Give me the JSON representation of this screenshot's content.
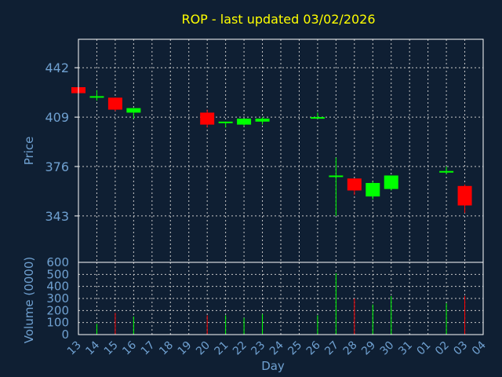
{
  "colors": {
    "bg": "#0f1f33",
    "up": "#00ff00",
    "down": "#ff0000",
    "axis": "#ffffff",
    "grid": "#c8c8c8",
    "title": "#ffff00",
    "label": "#6fa0d0"
  },
  "chart_data": {
    "type": "candlestick",
    "title": "ROP - last updated 03/02/2026",
    "xlabel": "Day",
    "x_ticks": [
      "13",
      "14",
      "15",
      "16",
      "17",
      "18",
      "19",
      "20",
      "21",
      "22",
      "23",
      "24",
      "25",
      "26",
      "27",
      "28",
      "29",
      "30",
      "31",
      "01",
      "02",
      "03",
      "04"
    ],
    "price_panel": {
      "ylabel": "Price",
      "ylim": [
        312,
        461
      ],
      "y_ticks": [
        343,
        376,
        409,
        442
      ],
      "grid": true
    },
    "volume_panel": {
      "ylabel": "Volume (0000)",
      "ylim": [
        0,
        600
      ],
      "y_ticks": [
        0,
        100,
        200,
        300,
        400,
        500,
        600
      ],
      "grid": true
    },
    "candles": [
      {
        "day": "13",
        "open": 429,
        "high": 429,
        "low": 425,
        "close": 425,
        "volume": 0
      },
      {
        "day": "14",
        "open": 423,
        "high": 427,
        "low": 420,
        "close": 423,
        "volume": 90
      },
      {
        "day": "15",
        "open": 422,
        "high": 422,
        "low": 413,
        "close": 414,
        "volume": 180
      },
      {
        "day": "16",
        "open": 412,
        "high": 415,
        "low": 408,
        "close": 415,
        "volume": 150
      },
      {
        "day": "20",
        "open": 412,
        "high": 414,
        "low": 402,
        "close": 404,
        "volume": 160
      },
      {
        "day": "21",
        "open": 405,
        "high": 406,
        "low": 402,
        "close": 406,
        "volume": 160
      },
      {
        "day": "22",
        "open": 404,
        "high": 408,
        "low": 403,
        "close": 408,
        "volume": 140
      },
      {
        "day": "23",
        "open": 406,
        "high": 409,
        "low": 404,
        "close": 408,
        "volume": 170
      },
      {
        "day": "26",
        "open": 409,
        "high": 412,
        "low": 408,
        "close": 409,
        "volume": 160
      },
      {
        "day": "27",
        "open": 369,
        "high": 382,
        "low": 343,
        "close": 370,
        "volume": 510
      },
      {
        "day": "28",
        "open": 368,
        "high": 368,
        "low": 357,
        "close": 360,
        "volume": 300
      },
      {
        "day": "29",
        "open": 356,
        "high": 366,
        "low": 354,
        "close": 365,
        "volume": 250
      },
      {
        "day": "30",
        "open": 361,
        "high": 370,
        "low": 360,
        "close": 370,
        "volume": 320
      },
      {
        "day": "02",
        "open": 373,
        "high": 376,
        "low": 371,
        "close": 373,
        "volume": 260
      },
      {
        "day": "03",
        "open": 363,
        "high": 364,
        "low": 345,
        "close": 350,
        "volume": 320
      }
    ]
  }
}
